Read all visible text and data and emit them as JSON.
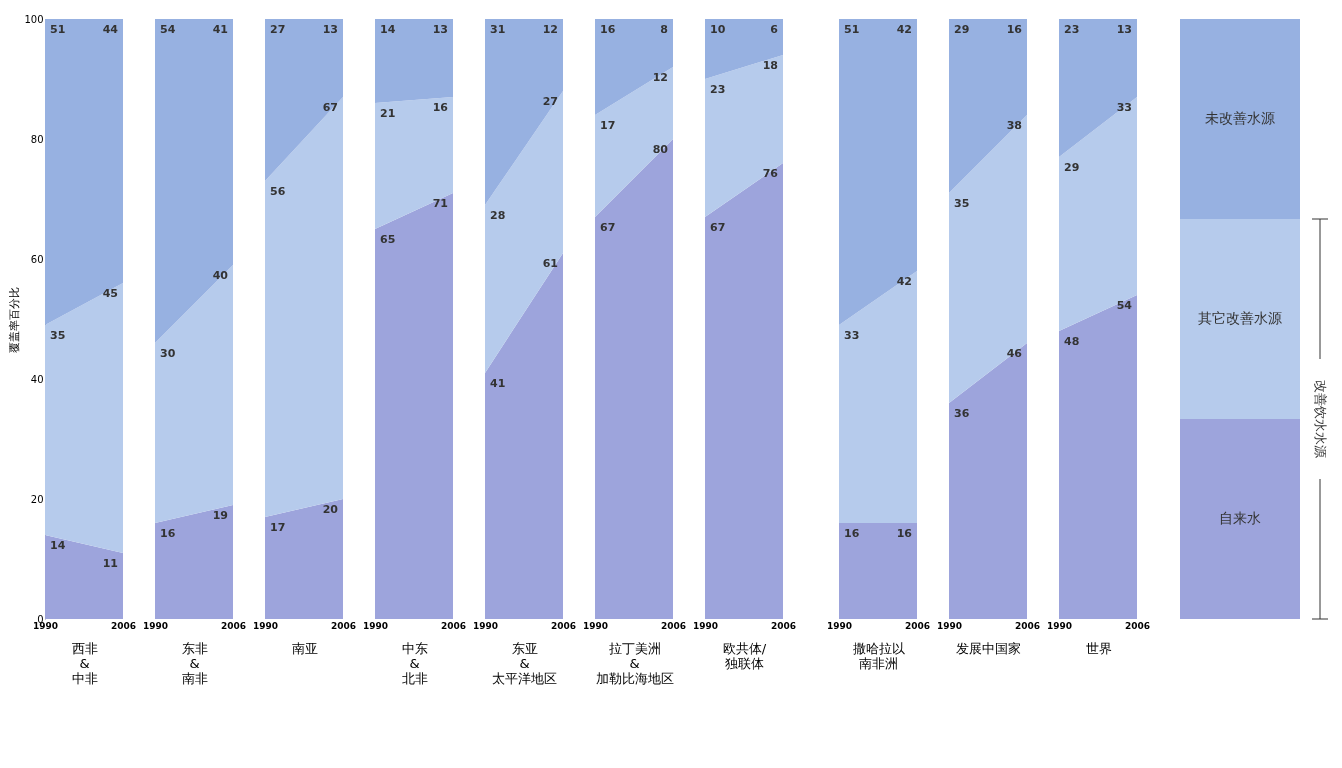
{
  "chart_data": [
    {
      "type": "area",
      "stacked": true,
      "data_labels": true,
      "xlabel": "西非\n&\n中非",
      "ylabel": "覆盖率百分比",
      "categories": [
        "1990",
        "2006"
      ],
      "ylim": [
        0,
        100
      ],
      "yticks": [
        0,
        20,
        40,
        60,
        80,
        100
      ],
      "series": [
        {
          "color": "#9da4dc",
          "values": [
            14,
            11
          ]
        },
        {
          "color": "#b6cbec",
          "values": [
            35,
            45
          ]
        },
        {
          "color": "#97b1e1",
          "values": [
            51,
            44
          ]
        }
      ]
    },
    {
      "type": "area",
      "stacked": true,
      "data_labels": true,
      "tick_labels": "x",
      "xlabel": "东非\n&\n南非",
      "categories": [
        "1990",
        "2006"
      ],
      "ylim": [
        0,
        100
      ],
      "series": [
        {
          "color": "#9da4dc",
          "values": [
            16,
            19
          ]
        },
        {
          "color": "#b6cbec",
          "values": [
            30,
            40
          ]
        },
        {
          "color": "#97b1e1",
          "values": [
            54,
            41
          ]
        }
      ]
    },
    {
      "type": "area",
      "stacked": true,
      "data_labels": true,
      "tick_labels": "x",
      "xlabel": "南亚",
      "categories": [
        "1990",
        "2006"
      ],
      "ylim": [
        0,
        100
      ],
      "series": [
        {
          "color": "#9da4dc",
          "values": [
            17,
            20
          ]
        },
        {
          "color": "#b6cbec",
          "values": [
            56,
            67
          ]
        },
        {
          "color": "#97b1e1",
          "values": [
            27,
            13
          ]
        }
      ]
    },
    {
      "type": "area",
      "stacked": true,
      "data_labels": true,
      "tick_labels": "x",
      "xlabel": "中东\n&\n北非",
      "categories": [
        "1990",
        "2006"
      ],
      "ylim": [
        0,
        100
      ],
      "series": [
        {
          "color": "#9da4dc",
          "values": [
            65,
            71
          ]
        },
        {
          "color": "#b6cbec",
          "values": [
            21,
            16
          ]
        },
        {
          "color": "#97b1e1",
          "values": [
            14,
            13
          ]
        }
      ]
    },
    {
      "type": "area",
      "stacked": true,
      "data_labels": true,
      "tick_labels": "x",
      "xlabel": "东亚\n&\n太平洋地区",
      "categories": [
        "1990",
        "2006"
      ],
      "ylim": [
        0,
        100
      ],
      "series": [
        {
          "color": "#9da4dc",
          "values": [
            41,
            61
          ]
        },
        {
          "color": "#b6cbec",
          "values": [
            28,
            27
          ]
        },
        {
          "color": "#97b1e1",
          "values": [
            31,
            12
          ]
        }
      ]
    },
    {
      "type": "area",
      "stacked": true,
      "data_labels": true,
      "tick_labels": "x",
      "xlabel": "拉丁美洲\n&\n加勒比海地区",
      "categories": [
        "1990",
        "2006"
      ],
      "ylim": [
        0,
        100
      ],
      "series": [
        {
          "color": "#9da4dc",
          "values": [
            67,
            80
          ]
        },
        {
          "color": "#b6cbec",
          "values": [
            17,
            12
          ]
        },
        {
          "color": "#97b1e1",
          "values": [
            16,
            8
          ]
        }
      ]
    },
    {
      "type": "area",
      "stacked": true,
      "data_labels": true,
      "tick_labels": "x",
      "xlabel": "欧共体/\n独联体",
      "categories": [
        "1990",
        "2006"
      ],
      "ylim": [
        0,
        100
      ],
      "series": [
        {
          "color": "#9da4dc",
          "values": [
            67,
            76
          ]
        },
        {
          "color": "#b6cbec",
          "values": [
            23,
            18
          ]
        },
        {
          "color": "#97b1e1",
          "values": [
            10,
            6
          ]
        }
      ]
    },
    {
      "type": "area",
      "stacked": true,
      "data_labels": true,
      "tick_labels": "x",
      "xlabel": "撒哈拉以南非洲",
      "categories": [
        "1990",
        "2006"
      ],
      "ylim": [
        0,
        100
      ],
      "series": [
        {
          "color": "#9da4dc",
          "values": [
            16,
            16
          ]
        },
        {
          "color": "#b6cbec",
          "values": [
            33,
            42
          ]
        },
        {
          "color": "#97b1e1",
          "values": [
            51,
            42
          ]
        }
      ]
    },
    {
      "type": "area",
      "stacked": true,
      "data_labels": true,
      "tick_labels": "x",
      "xlabel": "发展中国家",
      "categories": [
        "1990",
        "2006"
      ],
      "ylim": [
        0,
        100
      ],
      "series": [
        {
          "color": "#9da4dc",
          "values": [
            36,
            46
          ]
        },
        {
          "color": "#b6cbec",
          "values": [
            35,
            38
          ]
        },
        {
          "color": "#97b1e1",
          "values": [
            29,
            16
          ]
        }
      ]
    },
    {
      "type": "area",
      "stacked": true,
      "data_labels": true,
      "tick_labels": "x",
      "xlabel": "世界",
      "categories": [
        "1990",
        "2006"
      ],
      "ylim": [
        0,
        100
      ],
      "legend": "right",
      "legend_title": "改善饮水水源",
      "series": [
        {
          "name": "自来水",
          "color": "#9da4dc",
          "values": [
            48,
            54
          ]
        },
        {
          "name": "其它改善水源",
          "color": "#b6cbec",
          "values": [
            29,
            33
          ]
        },
        {
          "name": "未改善水源",
          "color": "#97b1e1",
          "values": [
            23,
            13
          ]
        }
      ]
    }
  ]
}
